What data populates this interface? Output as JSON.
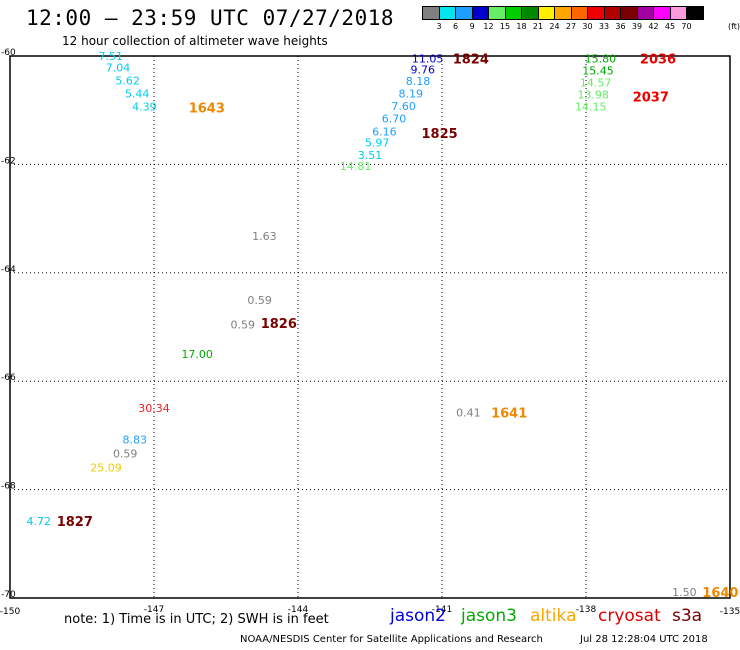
{
  "header": {
    "title": "12:00 – 23:59 UTC 07/27/2018",
    "subtitle": "12 hour collection of altimeter wave heights"
  },
  "colorbar": {
    "unit": "(ft)",
    "cells": [
      {
        "label": "3",
        "color": "#808080"
      },
      {
        "label": "6",
        "color": "#00e5ee"
      },
      {
        "label": "9",
        "color": "#1e9fff"
      },
      {
        "label": "12",
        "color": "#0000cd"
      },
      {
        "label": "15",
        "color": "#66ee66"
      },
      {
        "label": "18",
        "color": "#00cc00"
      },
      {
        "label": "21",
        "color": "#008800"
      },
      {
        "label": "24",
        "color": "#ffee00"
      },
      {
        "label": "27",
        "color": "#ffa500"
      },
      {
        "label": "30",
        "color": "#ff6600"
      },
      {
        "label": "33",
        "color": "#ee0000"
      },
      {
        "label": "36",
        "color": "#b00000"
      },
      {
        "label": "39",
        "color": "#7a0000"
      },
      {
        "label": "42",
        "color": "#a000a0"
      },
      {
        "label": "45",
        "color": "#ff00ff"
      },
      {
        "label": "70",
        "color": "#ff99dd"
      },
      {
        "label": "",
        "color": "#000000"
      }
    ]
  },
  "map": {
    "lon_range": [
      -150,
      -135
    ],
    "lat_range": [
      -70,
      -60
    ],
    "lon_lines": [
      -147,
      -144,
      -141,
      -138
    ],
    "lat_lines": [
      -62,
      -64,
      -66,
      -68
    ],
    "lon_tick_labels": [
      "-150",
      "-147",
      "-144",
      "-141",
      "-138",
      "-135"
    ],
    "lat_tick_labels": [
      "-60",
      "-62",
      "-64",
      "-66",
      "-68",
      "-70"
    ],
    "observations": [
      {
        "value": "7.51",
        "lon": -147.9,
        "lat": -60.0,
        "color": "#00ccee"
      },
      {
        "value": "7.04",
        "lon": -147.75,
        "lat": -60.21,
        "color": "#00ccee"
      },
      {
        "value": "5.62",
        "lon": -147.55,
        "lat": -60.45,
        "color": "#00ccee"
      },
      {
        "value": "5.44",
        "lon": -147.35,
        "lat": -60.69,
        "color": "#00ccee"
      },
      {
        "value": "4.39",
        "lon": -147.2,
        "lat": -60.93,
        "color": "#00ccee"
      },
      {
        "value": "11.05",
        "lon": -141.3,
        "lat": -60.05,
        "color": "#0000cd"
      },
      {
        "value": "9.76",
        "lon": -141.4,
        "lat": -60.25,
        "color": "#0000cd"
      },
      {
        "value": "8.18",
        "lon": -141.5,
        "lat": -60.46,
        "color": "#1e9fff"
      },
      {
        "value": "8.19",
        "lon": -141.65,
        "lat": -60.69,
        "color": "#1e9fff"
      },
      {
        "value": "7.60",
        "lon": -141.8,
        "lat": -60.92,
        "color": "#1e9fff"
      },
      {
        "value": "6.70",
        "lon": -142.0,
        "lat": -61.15,
        "color": "#1e9fff"
      },
      {
        "value": "6.16",
        "lon": -142.2,
        "lat": -61.39,
        "color": "#1e9fff"
      },
      {
        "value": "5.97",
        "lon": -142.35,
        "lat": -61.6,
        "color": "#00ccee"
      },
      {
        "value": "3.51",
        "lon": -142.5,
        "lat": -61.83,
        "color": "#00ccee"
      },
      {
        "value": "14.81",
        "lon": -142.8,
        "lat": -62.03,
        "color": "#66ee66"
      },
      {
        "value": "15.80",
        "lon": -137.7,
        "lat": -60.05,
        "color": "#00aa00"
      },
      {
        "value": "15.45",
        "lon": -137.75,
        "lat": -60.27,
        "color": "#00aa00"
      },
      {
        "value": "14.57",
        "lon": -137.8,
        "lat": -60.49,
        "color": "#66ee66"
      },
      {
        "value": "13.98",
        "lon": -137.85,
        "lat": -60.71,
        "color": "#66ee66"
      },
      {
        "value": "14.15",
        "lon": -137.9,
        "lat": -60.93,
        "color": "#66ee66"
      },
      {
        "value": "1.63",
        "lon": -144.7,
        "lat": -63.32,
        "color": "#808080"
      },
      {
        "value": "0.59",
        "lon": -144.8,
        "lat": -64.5,
        "color": "#808080"
      },
      {
        "value": "0.59",
        "lon": -145.15,
        "lat": -64.95,
        "color": "#808080"
      },
      {
        "value": "17.00",
        "lon": -146.1,
        "lat": -65.5,
        "color": "#00aa00"
      },
      {
        "value": "30.34",
        "lon": -147.0,
        "lat": -66.49,
        "color": "#ee2222"
      },
      {
        "value": "8.83",
        "lon": -147.4,
        "lat": -67.08,
        "color": "#1e9fff"
      },
      {
        "value": "0.59",
        "lon": -147.6,
        "lat": -67.33,
        "color": "#808080"
      },
      {
        "value": "25.09",
        "lon": -148.0,
        "lat": -67.59,
        "color": "#eecc00"
      },
      {
        "value": "4.72",
        "lon": -149.4,
        "lat": -68.58,
        "color": "#00ccee"
      },
      {
        "value": "0.41",
        "lon": -140.45,
        "lat": -66.58,
        "color": "#808080"
      },
      {
        "value": "1.50",
        "lon": -135.95,
        "lat": -69.89,
        "color": "#808080"
      }
    ],
    "pass_times": [
      {
        "time": "1643",
        "lon": -145.9,
        "lat": -60.95,
        "color": "#ee8800"
      },
      {
        "time": "1824",
        "lon": -140.4,
        "lat": -60.05,
        "color": "#7a0000"
      },
      {
        "time": "1825",
        "lon": -141.05,
        "lat": -61.42,
        "color": "#7a0000"
      },
      {
        "time": "2036",
        "lon": -136.5,
        "lat": -60.05,
        "color": "#ee0000"
      },
      {
        "time": "2037",
        "lon": -136.65,
        "lat": -60.75,
        "color": "#ee0000"
      },
      {
        "time": "1826",
        "lon": -144.4,
        "lat": -64.93,
        "color": "#7a0000"
      },
      {
        "time": "1641",
        "lon": -139.6,
        "lat": -66.58,
        "color": "#ee8800"
      },
      {
        "time": "1827",
        "lon": -148.65,
        "lat": -68.58,
        "color": "#7a0000"
      },
      {
        "time": "1640",
        "lon": -135.2,
        "lat": -69.89,
        "color": "#ee8800"
      }
    ]
  },
  "footer": {
    "note": "note: 1) Time is in UTC; 2) SWH is in feet",
    "credit": "NOAA/NESDIS Center for Satellite Applications and Research",
    "timestamp": "Jul 28 12:28:04 UTC 2018",
    "legend": [
      {
        "label": "jason2",
        "color": "#0000dd"
      },
      {
        "label": "jason3",
        "color": "#00aa00"
      },
      {
        "label": "altika",
        "color": "#ffa500"
      },
      {
        "label": "cryosat",
        "color": "#dd0000"
      },
      {
        "label": "s3a",
        "color": "#7a0000"
      }
    ]
  }
}
